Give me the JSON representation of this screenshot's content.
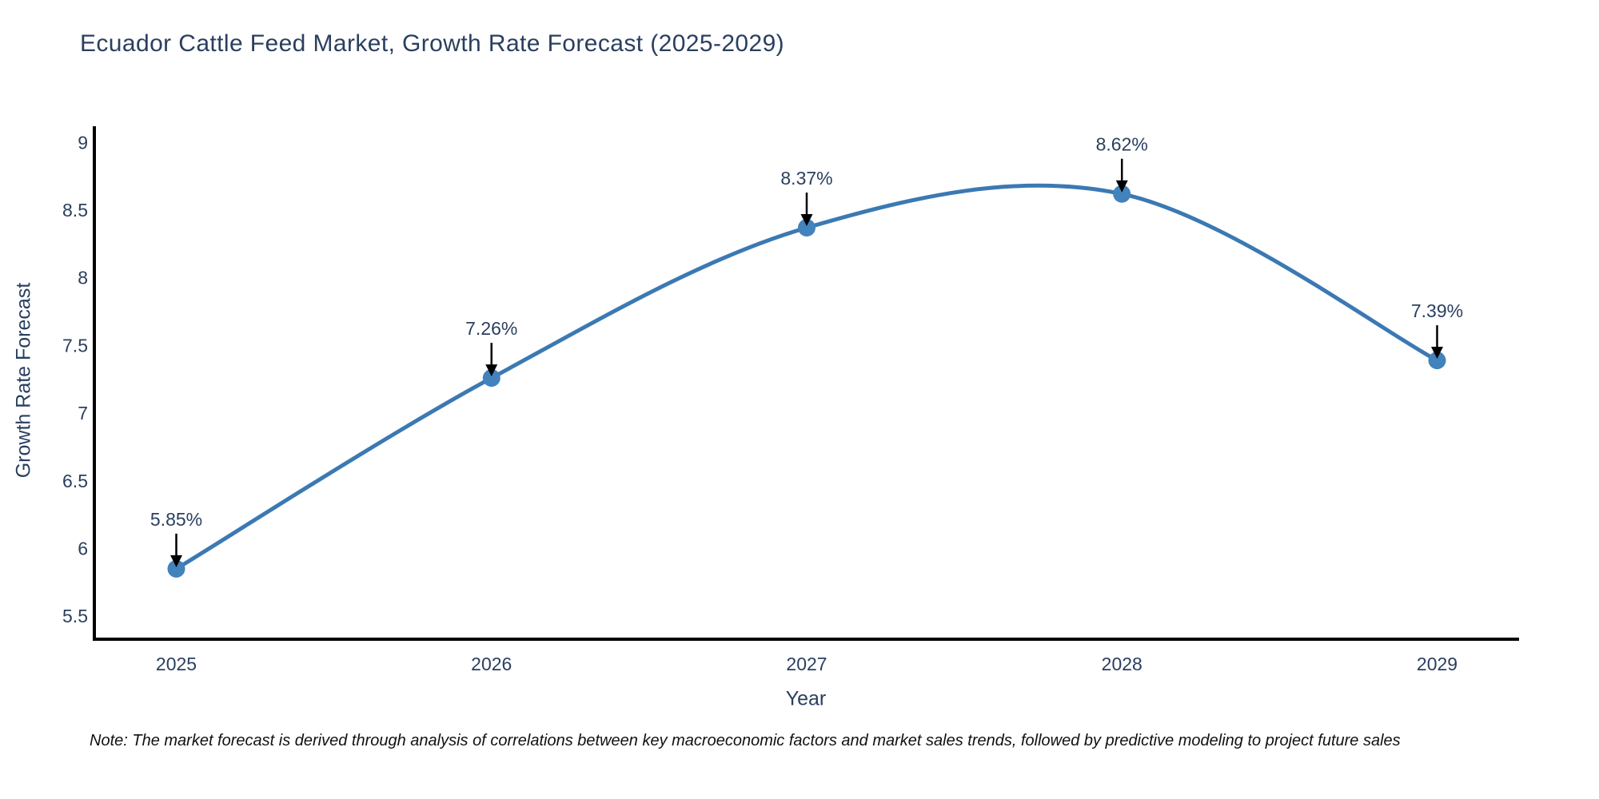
{
  "page": {
    "title": "Ecuador Cattle Feed Market, Growth Rate Forecast (2025-2029)",
    "note": "Note: The market forecast is derived through analysis of correlations between key macroeconomic factors and market sales trends, followed by predictive modeling to project future sales"
  },
  "chart_data": {
    "type": "line",
    "title": "Ecuador Cattle Feed Market, Growth Rate Forecast (2025-2029)",
    "x": [
      2025,
      2026,
      2027,
      2028,
      2029
    ],
    "series": [
      {
        "name": "Growth Rate Forecast",
        "values": [
          5.85,
          7.26,
          8.37,
          8.62,
          7.39
        ]
      }
    ],
    "point_labels": [
      "5.85%",
      "7.26%",
      "8.37%",
      "8.62%",
      "7.39%"
    ],
    "xlabel": "Year",
    "ylabel": "Growth Rate Forecast",
    "x_ticks": [
      2025,
      2026,
      2027,
      2028,
      2029
    ],
    "y_ticks": [
      5.5,
      6,
      6.5,
      7,
      7.5,
      8,
      8.5,
      9
    ],
    "xlim": [
      2024.74,
      2029.26
    ],
    "ylim": [
      5.33,
      9.12
    ],
    "grid": false,
    "legend": "none",
    "line_shape": "spline",
    "colors": {
      "line": "#3b79b3",
      "marker": "#4282bd",
      "axis": "#000000",
      "text": "#2a3f5f",
      "annotation_text": "#2a3f5f",
      "arrow": "#000000",
      "background": "#ffffff"
    }
  }
}
